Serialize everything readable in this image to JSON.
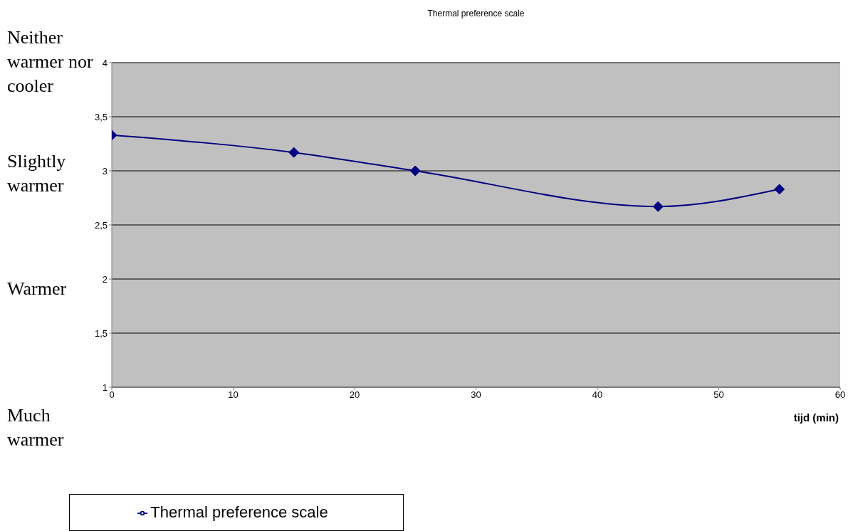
{
  "chart_data": {
    "type": "line",
    "title": "Thermal preference scale",
    "xlabel": "tijd (min)",
    "annotations": [
      "Neither warmer nor cooler",
      "Slightly warmer",
      "Warmer",
      "Much warmer"
    ],
    "x": [
      0,
      15,
      25,
      45,
      55
    ],
    "series": [
      {
        "name": "Thermal preference scale",
        "color": "#000080",
        "values": [
          3.33,
          3.17,
          3.0,
          2.67,
          2.83
        ]
      }
    ],
    "xlim": [
      0,
      60
    ],
    "xticks": [
      0,
      10,
      20,
      30,
      40,
      50,
      60
    ],
    "ylim": [
      1,
      4
    ],
    "yticks": [
      {
        "value": 1,
        "label": "1"
      },
      {
        "value": 1.5,
        "label": "1,5"
      },
      {
        "value": 2,
        "label": "2"
      },
      {
        "value": 2.5,
        "label": "2,5"
      },
      {
        "value": 3,
        "label": "3"
      },
      {
        "value": 3.5,
        "label": "3,5"
      },
      {
        "value": 4,
        "label": "4"
      }
    ],
    "grid": "y",
    "legend": "bottom left",
    "marker": "diamond",
    "line_style": "solid"
  }
}
